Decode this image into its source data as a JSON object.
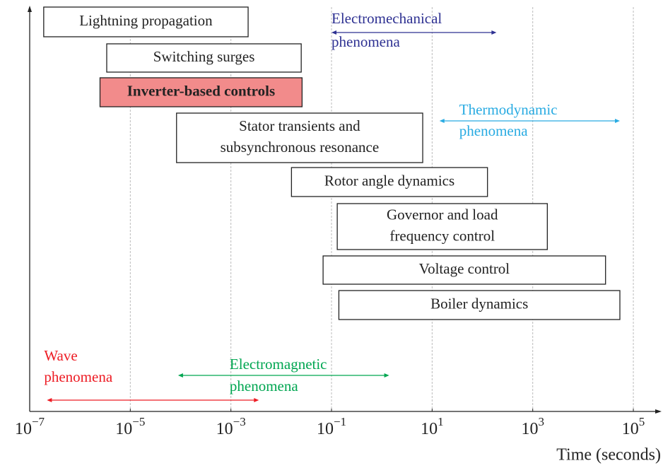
{
  "chart_data": {
    "type": "timeline",
    "x_label": "Time (seconds)",
    "log_x": true,
    "grid": true,
    "xlim": [
      1e-07,
      300000
    ],
    "xticks": [
      {
        "value": 1e-07,
        "label": "10^−7"
      },
      {
        "value": 1e-05,
        "label": "10^−5"
      },
      {
        "value": 0.001,
        "label": "10^−3"
      },
      {
        "value": 0.1,
        "label": "10^−1"
      },
      {
        "value": 10,
        "label": "10^1"
      },
      {
        "value": 1000,
        "label": "10^3"
      },
      {
        "value": 100000,
        "label": "10^5"
      }
    ],
    "boxes": [
      {
        "label": [
          "Lightning propagation"
        ],
        "start": 1.9e-07,
        "end": 0.0022
      },
      {
        "label": [
          "Switching surges"
        ],
        "start": 3.4e-06,
        "end": 0.025
      },
      {
        "label": [
          "Inverter-based controls"
        ],
        "start": 2.5e-06,
        "end": 0.026,
        "fill": "#f28b8b",
        "bold": true
      },
      {
        "label": [
          "Stator transients and",
          "subsynchronous resonance"
        ],
        "start": 8.3e-05,
        "end": 6.5
      },
      {
        "label": [
          "Rotor angle dynamics"
        ],
        "start": 0.016,
        "end": 126
      },
      {
        "label": [
          "Governor and load",
          "frequency control"
        ],
        "start": 0.13,
        "end": 1950
      },
      {
        "label": [
          "Voltage control"
        ],
        "start": 0.068,
        "end": 28000
      },
      {
        "label": [
          "Boiler dynamics"
        ],
        "start": 0.14,
        "end": 54000
      }
    ],
    "ranges": [
      {
        "label": [
          "Electromechanical",
          "phenomena"
        ],
        "start": 0.1,
        "end": 190,
        "color": "#2e3192"
      },
      {
        "label": [
          "Thermodynamic",
          "phenomena"
        ],
        "start": 14,
        "end": 54000,
        "color": "#29abe2"
      },
      {
        "label": [
          "Electromagnetic",
          "phenomena"
        ],
        "start": 8.9e-05,
        "end": 1.4,
        "color": "#00a651"
      },
      {
        "label": [
          "Wave",
          "phenomena"
        ],
        "start": 2.2e-07,
        "end": 0.0036,
        "color": "#ed1c24"
      }
    ]
  }
}
